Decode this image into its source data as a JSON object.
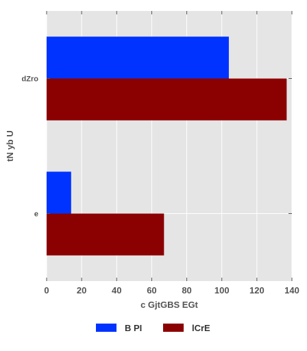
{
  "chart_data": {
    "type": "bar",
    "orientation": "horizontal",
    "categories": [
      "dZro",
      "e"
    ],
    "series": [
      {
        "name": "B PI",
        "values": [
          104,
          14
        ],
        "color": "#0033ff"
      },
      {
        "name": "lCrE",
        "values": [
          137,
          67
        ],
        "color": "#8b0000"
      }
    ],
    "xlabel": "c GjtGBS EGt",
    "ylabel": "tN yb U",
    "xlim": [
      0,
      140
    ],
    "xticks": [
      0,
      20,
      40,
      60,
      80,
      100,
      120,
      140
    ],
    "grid": true,
    "legend_position": "bottom-center",
    "plot_background": "#e5e5e5",
    "grid_color": "#ffffff"
  }
}
